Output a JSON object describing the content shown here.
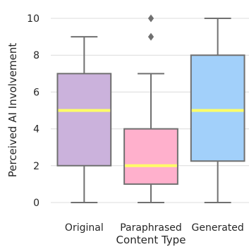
{
  "chart_data": {
    "type": "box",
    "xlabel": "Content Type",
    "ylabel": "Perceived AI Involvement",
    "ylim": [
      -0.5,
      10.5
    ],
    "yticks": [
      0,
      2,
      4,
      6,
      8,
      10
    ],
    "grid": true,
    "median_color": "#ffff66",
    "line_color": "#707070",
    "categories": [
      "Original",
      "Paraphrased",
      "Generated"
    ],
    "series": [
      {
        "category": "Original",
        "color": "#cbb2dc",
        "whisker_low": 0,
        "q1": 2,
        "median": 5,
        "q3": 7,
        "whisker_high": 9,
        "outliers": []
      },
      {
        "category": "Paraphrased",
        "color": "#ffb0cc",
        "whisker_low": 0,
        "q1": 1,
        "median": 2,
        "q3": 4,
        "whisker_high": 7,
        "outliers": [
          9,
          10
        ]
      },
      {
        "category": "Generated",
        "color": "#a2d0fa",
        "whisker_low": 0,
        "q1": 2.25,
        "median": 5,
        "q3": 8,
        "whisker_high": 10,
        "outliers": []
      }
    ]
  }
}
